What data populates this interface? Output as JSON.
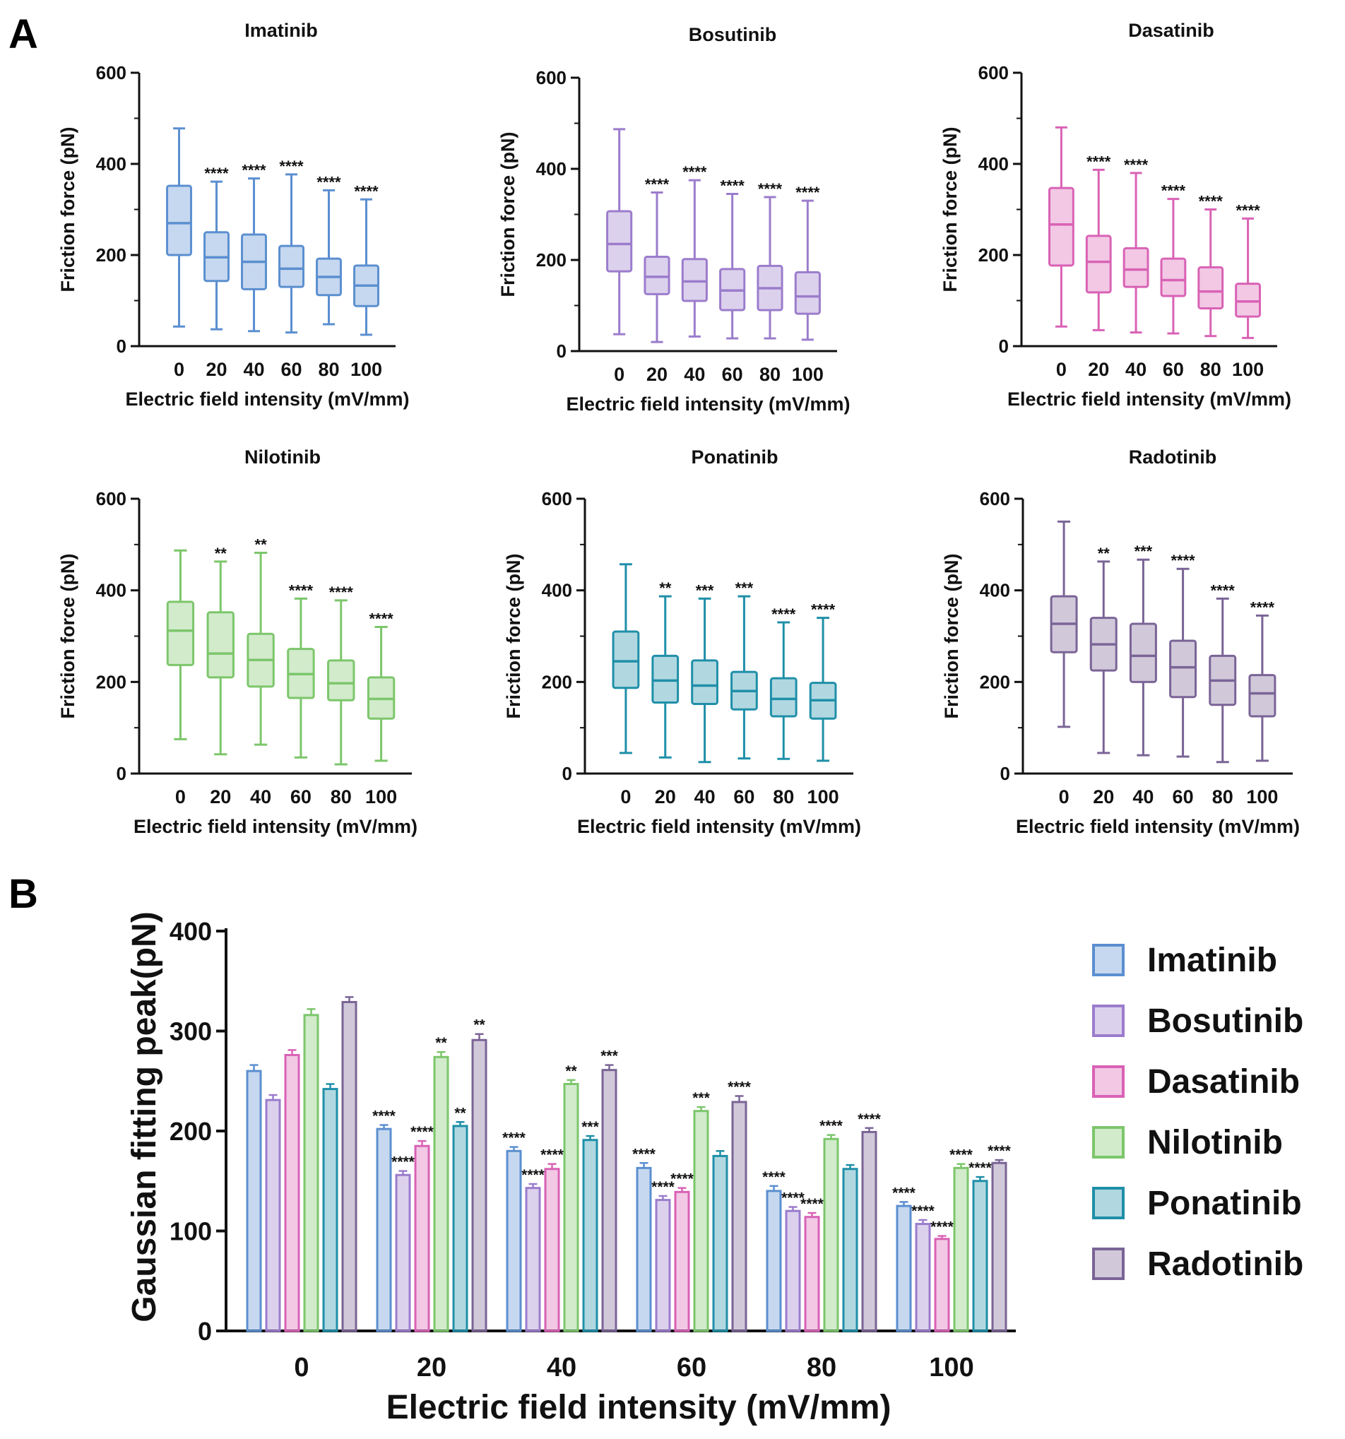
{
  "figure": {
    "panel_a_label": "A",
    "panel_b_label": "B"
  },
  "colors": {
    "Imatinib": "#5b8fd0",
    "Bosutinib": "#9b7ccc",
    "Dasatinib": "#d962b5",
    "Nilotinib": "#7cc66b",
    "Ponatinib": "#1f8fa8",
    "Radotinib": "#7a6496"
  },
  "chart_data": [
    {
      "type": "box",
      "title": "Imatinib",
      "xlabel": "Electric field intensity (mV/mm)",
      "ylabel": "Friction force (pN)",
      "categories": [
        "0",
        "20",
        "40",
        "60",
        "80",
        "100"
      ],
      "ylim": [
        0,
        600
      ],
      "yticks": [
        "0",
        "200",
        "400",
        "600"
      ],
      "boxes": [
        {
          "min": 43,
          "q1": 200,
          "median": 270,
          "q3": 352,
          "max": 478,
          "sig": ""
        },
        {
          "min": 37,
          "q1": 143,
          "median": 195,
          "q3": 250,
          "max": 361,
          "sig": "****"
        },
        {
          "min": 33,
          "q1": 125,
          "median": 185,
          "q3": 245,
          "max": 368,
          "sig": "****"
        },
        {
          "min": 30,
          "q1": 130,
          "median": 170,
          "q3": 220,
          "max": 377,
          "sig": "****"
        },
        {
          "min": 48,
          "q1": 112,
          "median": 152,
          "q3": 192,
          "max": 342,
          "sig": "****"
        },
        {
          "min": 25,
          "q1": 88,
          "median": 133,
          "q3": 177,
          "max": 322,
          "sig": "****"
        }
      ]
    },
    {
      "type": "box",
      "title": "Bosutinib",
      "xlabel": "Electric field intensity (mV/mm)",
      "ylabel": "Friction force (pN)",
      "categories": [
        "0",
        "20",
        "40",
        "60",
        "80",
        "100"
      ],
      "ylim": [
        0,
        600
      ],
      "yticks": [
        "0",
        "200",
        "400",
        "600"
      ],
      "boxes": [
        {
          "min": 37,
          "q1": 175,
          "median": 235,
          "q3": 307,
          "max": 487,
          "sig": ""
        },
        {
          "min": 20,
          "q1": 125,
          "median": 163,
          "q3": 207,
          "max": 348,
          "sig": "****"
        },
        {
          "min": 32,
          "q1": 110,
          "median": 153,
          "q3": 202,
          "max": 375,
          "sig": "****"
        },
        {
          "min": 28,
          "q1": 90,
          "median": 133,
          "q3": 180,
          "max": 345,
          "sig": "****"
        },
        {
          "min": 28,
          "q1": 90,
          "median": 138,
          "q3": 187,
          "max": 338,
          "sig": "****"
        },
        {
          "min": 25,
          "q1": 82,
          "median": 120,
          "q3": 173,
          "max": 330,
          "sig": "****"
        }
      ]
    },
    {
      "type": "box",
      "title": "Dasatinib",
      "xlabel": "Electric field intensity (mV/mm)",
      "ylabel": "Friction force (pN)",
      "categories": [
        "0",
        "20",
        "40",
        "60",
        "80",
        "100"
      ],
      "ylim": [
        0,
        600
      ],
      "yticks": [
        "0",
        "200",
        "400",
        "600"
      ],
      "boxes": [
        {
          "min": 43,
          "q1": 177,
          "median": 267,
          "q3": 347,
          "max": 480,
          "sig": ""
        },
        {
          "min": 35,
          "q1": 118,
          "median": 185,
          "q3": 242,
          "max": 387,
          "sig": "****"
        },
        {
          "min": 30,
          "q1": 130,
          "median": 168,
          "q3": 215,
          "max": 380,
          "sig": "****"
        },
        {
          "min": 28,
          "q1": 110,
          "median": 145,
          "q3": 192,
          "max": 323,
          "sig": "****"
        },
        {
          "min": 22,
          "q1": 83,
          "median": 120,
          "q3": 173,
          "max": 300,
          "sig": "****"
        },
        {
          "min": 18,
          "q1": 65,
          "median": 98,
          "q3": 137,
          "max": 280,
          "sig": "****"
        }
      ]
    },
    {
      "type": "box",
      "title": "Nilotinib",
      "xlabel": "Electric field intensity (mV/mm)",
      "ylabel": "Friction force (pN)",
      "categories": [
        "0",
        "20",
        "40",
        "60",
        "80",
        "100"
      ],
      "ylim": [
        0,
        600
      ],
      "yticks": [
        "0",
        "200",
        "400",
        "600"
      ],
      "boxes": [
        {
          "min": 75,
          "q1": 237,
          "median": 312,
          "q3": 375,
          "max": 487,
          "sig": ""
        },
        {
          "min": 42,
          "q1": 210,
          "median": 262,
          "q3": 352,
          "max": 463,
          "sig": "**"
        },
        {
          "min": 63,
          "q1": 190,
          "median": 248,
          "q3": 305,
          "max": 482,
          "sig": "**"
        },
        {
          "min": 35,
          "q1": 165,
          "median": 217,
          "q3": 272,
          "max": 382,
          "sig": "****"
        },
        {
          "min": 20,
          "q1": 160,
          "median": 197,
          "q3": 247,
          "max": 378,
          "sig": "****"
        },
        {
          "min": 28,
          "q1": 120,
          "median": 163,
          "q3": 210,
          "max": 320,
          "sig": "****"
        }
      ]
    },
    {
      "type": "box",
      "title": "Ponatinib",
      "xlabel": "Electric field intensity (mV/mm)",
      "ylabel": "Friction force (pN)",
      "categories": [
        "0",
        "20",
        "40",
        "60",
        "80",
        "100"
      ],
      "ylim": [
        0,
        600
      ],
      "yticks": [
        "0",
        "200",
        "400",
        "600"
      ],
      "boxes": [
        {
          "min": 45,
          "q1": 187,
          "median": 245,
          "q3": 310,
          "max": 457,
          "sig": ""
        },
        {
          "min": 35,
          "q1": 155,
          "median": 203,
          "q3": 257,
          "max": 387,
          "sig": "**"
        },
        {
          "min": 25,
          "q1": 152,
          "median": 192,
          "q3": 247,
          "max": 382,
          "sig": "***"
        },
        {
          "min": 33,
          "q1": 140,
          "median": 180,
          "q3": 222,
          "max": 387,
          "sig": "***"
        },
        {
          "min": 32,
          "q1": 125,
          "median": 163,
          "q3": 208,
          "max": 330,
          "sig": "****"
        },
        {
          "min": 28,
          "q1": 120,
          "median": 160,
          "q3": 198,
          "max": 340,
          "sig": "****"
        }
      ]
    },
    {
      "type": "box",
      "title": "Radotinib",
      "xlabel": "Electric field intensity (mV/mm)",
      "ylabel": "Friction force (pN)",
      "categories": [
        "0",
        "20",
        "40",
        "60",
        "80",
        "100"
      ],
      "ylim": [
        0,
        600
      ],
      "yticks": [
        "0",
        "200",
        "400",
        "600"
      ],
      "boxes": [
        {
          "min": 102,
          "q1": 265,
          "median": 327,
          "q3": 387,
          "max": 550,
          "sig": ""
        },
        {
          "min": 45,
          "q1": 225,
          "median": 282,
          "q3": 340,
          "max": 463,
          "sig": "**"
        },
        {
          "min": 40,
          "q1": 200,
          "median": 257,
          "q3": 327,
          "max": 467,
          "sig": "***"
        },
        {
          "min": 37,
          "q1": 167,
          "median": 232,
          "q3": 290,
          "max": 447,
          "sig": "****"
        },
        {
          "min": 25,
          "q1": 150,
          "median": 203,
          "q3": 257,
          "max": 382,
          "sig": "****"
        },
        {
          "min": 28,
          "q1": 125,
          "median": 175,
          "q3": 215,
          "max": 345,
          "sig": "****"
        }
      ]
    },
    {
      "type": "bar",
      "title": "",
      "xlabel": "Electric field intensity (mV/mm)",
      "ylabel": "Gaussian fitting peak(pN)",
      "categories": [
        "0",
        "20",
        "40",
        "60",
        "80",
        "100"
      ],
      "ylim": [
        0,
        400
      ],
      "yticks": [
        "0",
        "100",
        "200",
        "300",
        "400"
      ],
      "legend": "right",
      "series": [
        {
          "name": "Imatinib",
          "values": [
            260,
            202,
            180,
            163,
            140,
            125
          ],
          "errors": [
            6,
            4,
            4,
            5,
            5,
            4
          ],
          "sig": [
            "",
            "****",
            "****",
            "****",
            "****",
            "****"
          ]
        },
        {
          "name": "Bosutinib",
          "values": [
            231,
            156,
            143,
            131,
            120,
            107
          ],
          "errors": [
            5,
            4,
            4,
            4,
            4,
            4
          ],
          "sig": [
            "",
            "****",
            "****",
            "****",
            "****",
            "****"
          ]
        },
        {
          "name": "Dasatinib",
          "values": [
            276,
            185,
            162,
            139,
            114,
            92
          ],
          "errors": [
            5,
            5,
            5,
            4,
            4,
            3
          ],
          "sig": [
            "",
            "****",
            "****",
            "****",
            "****",
            "****"
          ]
        },
        {
          "name": "Nilotinib",
          "values": [
            316,
            274,
            247,
            220,
            192,
            163
          ],
          "errors": [
            6,
            5,
            4,
            4,
            4,
            4
          ],
          "sig": [
            "",
            "**",
            "**",
            "***",
            "****",
            "****"
          ]
        },
        {
          "name": "Ponatinib",
          "values": [
            242,
            205,
            191,
            175,
            162,
            150
          ],
          "errors": [
            5,
            4,
            4,
            5,
            4,
            4
          ],
          "sig": [
            "",
            "**",
            "***",
            "",
            "",
            "****"
          ]
        },
        {
          "name": "Radotinib",
          "values": [
            329,
            291,
            261,
            229,
            199,
            168
          ],
          "errors": [
            5,
            6,
            5,
            6,
            4,
            3
          ],
          "sig": [
            "",
            "**",
            "***",
            "****",
            "****",
            "****"
          ]
        }
      ]
    }
  ]
}
